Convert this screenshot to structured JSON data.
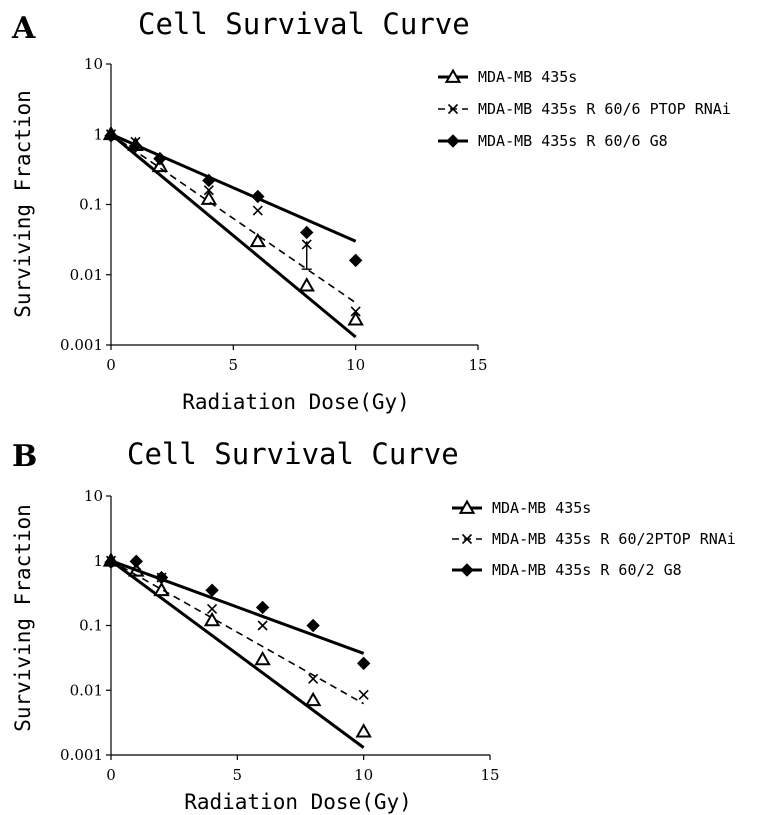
{
  "colors": {
    "ink": "#000000",
    "background": "#ffffff"
  },
  "chart_data": [
    {
      "panel": "A",
      "type": "scatter",
      "title": "Cell Survival Curve",
      "xlabel": "Radiation Dose(Gy)",
      "ylabel": "Surviving Fraction",
      "xlim": [
        0,
        15
      ],
      "ylim": [
        0.001,
        10
      ],
      "yscale": "log",
      "xticks": [
        0,
        5,
        10,
        15
      ],
      "xtick_labels": [
        "0",
        "5",
        "10",
        "15"
      ],
      "yticks": [
        0.001,
        0.01,
        0.1,
        1,
        10
      ],
      "ytick_labels": [
        "0.001",
        "0.01",
        "0.1",
        "1",
        "10"
      ],
      "grid": false,
      "legend_position": "top-right",
      "series": [
        {
          "name": "MDA-MB 435s",
          "marker": "triangle-open",
          "line_style": "solid-bold",
          "x": [
            0,
            1,
            2,
            4,
            6,
            8,
            10
          ],
          "y": [
            1.0,
            0.7,
            0.35,
            0.12,
            0.03,
            0.007,
            0.0023
          ],
          "fit": {
            "x": [
              0,
              10
            ],
            "y": [
              1.0,
              0.0013
            ]
          }
        },
        {
          "name": "MDA-MB 435s R 60/6 PTOP RNAi",
          "marker": "x",
          "line_style": "dashed",
          "x": [
            0,
            1,
            2,
            4,
            6,
            8,
            10
          ],
          "y": [
            1.0,
            0.78,
            0.4,
            0.16,
            0.082,
            0.027,
            0.003
          ],
          "error_bars": [
            {
              "x": 8,
              "low": 0.012,
              "high": 0.03
            }
          ],
          "fit": {
            "x": [
              0,
              10
            ],
            "y": [
              1.0,
              0.004
            ]
          }
        },
        {
          "name": "MDA-MB 435s R 60/6 G8",
          "marker": "diamond-filled",
          "line_style": "solid-bold",
          "x": [
            0,
            1,
            2,
            4,
            6,
            8,
            10
          ],
          "y": [
            0.95,
            0.68,
            0.45,
            0.22,
            0.13,
            0.04,
            0.016
          ],
          "fit": {
            "x": [
              0,
              10
            ],
            "y": [
              1.0,
              0.03
            ]
          }
        }
      ]
    },
    {
      "panel": "B",
      "type": "scatter",
      "title": "Cell Survival Curve",
      "xlabel": "Radiation Dose(Gy)",
      "ylabel": "Surviving Fraction",
      "xlim": [
        0,
        15
      ],
      "ylim": [
        0.001,
        10
      ],
      "yscale": "log",
      "xticks": [
        0,
        5,
        10,
        15
      ],
      "xtick_labels": [
        "0",
        "5",
        "10",
        "15"
      ],
      "yticks": [
        0.001,
        0.01,
        0.1,
        1,
        10
      ],
      "ytick_labels": [
        "0.001",
        "0.01",
        "0.1",
        "1",
        "10"
      ],
      "grid": false,
      "legend_position": "top-right",
      "series": [
        {
          "name": "MDA-MB 435s",
          "marker": "triangle-open",
          "line_style": "solid-bold",
          "x": [
            0,
            1,
            2,
            4,
            6,
            8,
            10
          ],
          "y": [
            1.0,
            0.7,
            0.35,
            0.12,
            0.03,
            0.007,
            0.0023
          ],
          "fit": {
            "x": [
              0,
              10
            ],
            "y": [
              1.0,
              0.0013
            ]
          }
        },
        {
          "name": "MDA-MB 435s R 60/2PTOP RNAi",
          "marker": "x",
          "line_style": "dashed",
          "x": [
            0,
            1,
            2,
            4,
            6,
            8,
            10
          ],
          "y": [
            1.0,
            0.85,
            0.55,
            0.18,
            0.1,
            0.015,
            0.0085
          ],
          "fit": {
            "x": [
              0,
              10
            ],
            "y": [
              1.0,
              0.0062
            ]
          }
        },
        {
          "name": "MDA-MB 435s R 60/2 G8",
          "marker": "diamond-filled",
          "line_style": "solid-bold",
          "x": [
            0,
            1,
            2,
            4,
            6,
            8,
            10
          ],
          "y": [
            0.95,
            0.98,
            0.55,
            0.35,
            0.19,
            0.1,
            0.026
          ],
          "fit": {
            "x": [
              0,
              10
            ],
            "y": [
              1.0,
              0.037
            ]
          }
        }
      ]
    }
  ]
}
